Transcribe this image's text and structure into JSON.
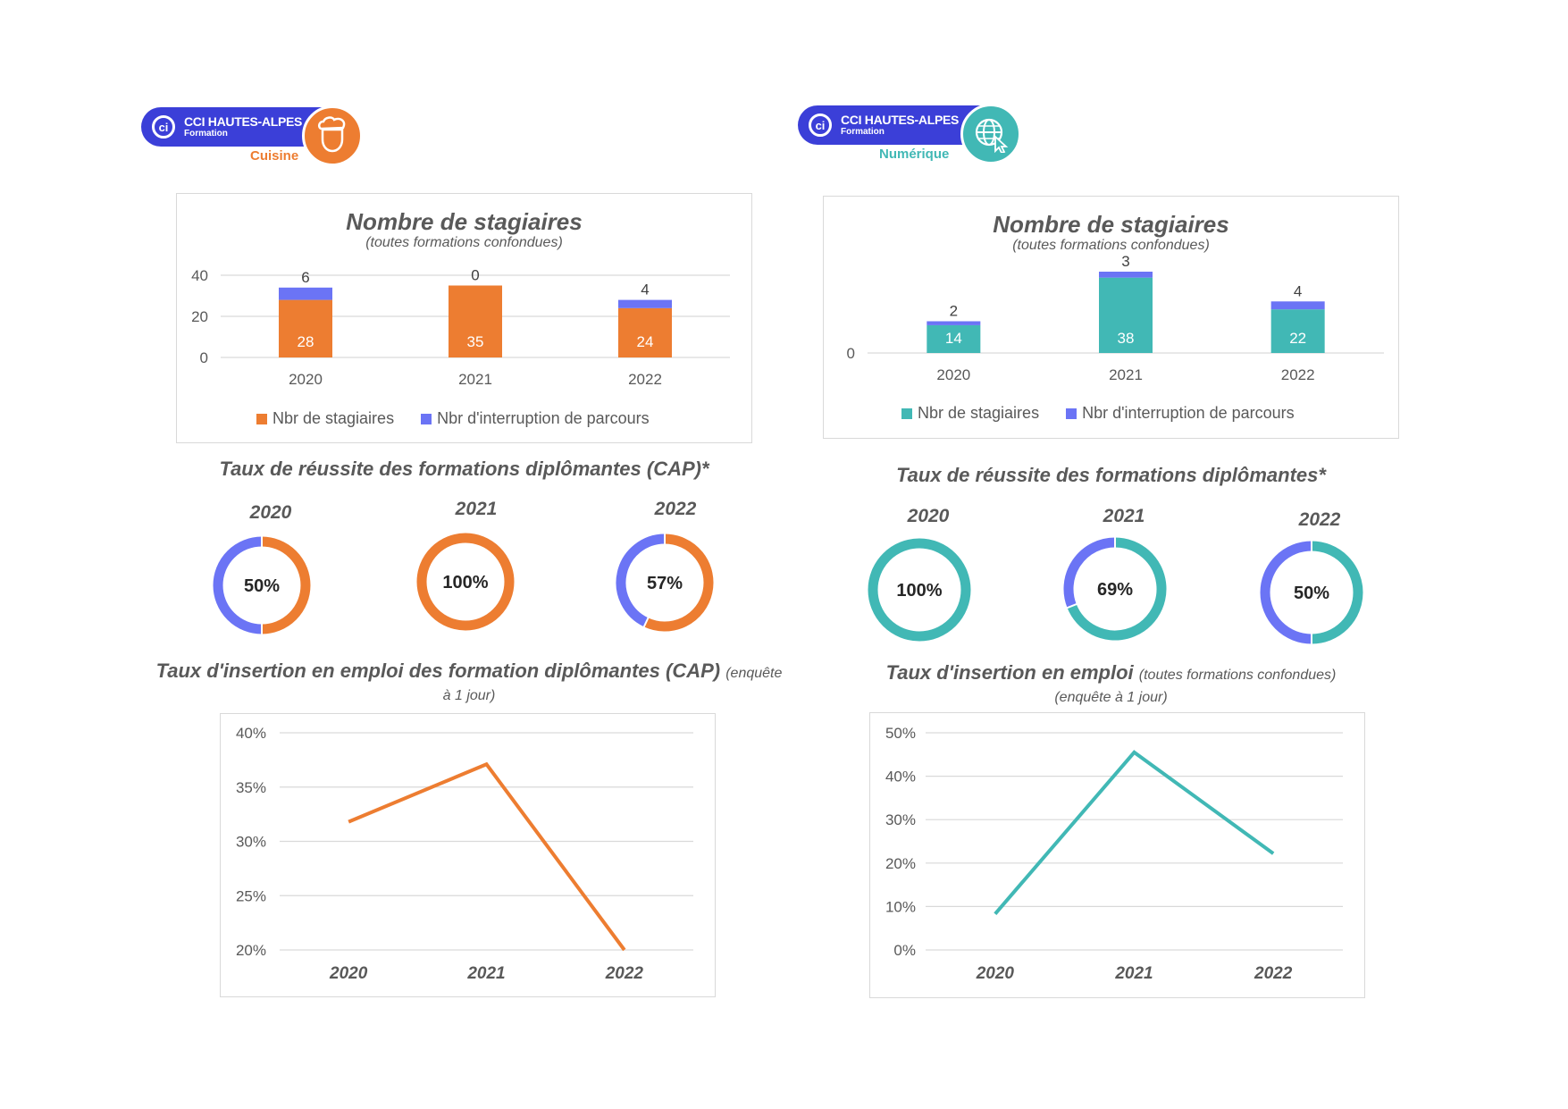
{
  "colors": {
    "orange": "#ed7d31",
    "blue": "#6b74f5",
    "teal": "#41b8b5",
    "text": "#595959",
    "grid": "#d9d9d9",
    "logo_blue": "#3b3fd8"
  },
  "panels": [
    {
      "logo": {
        "name": "CCI HAUTES-ALPES",
        "sub": "Formation",
        "category": "Cuisine",
        "icon": "chef-icon",
        "color": "#ed7d31"
      },
      "bar_title": "Nombre de stagiaires",
      "bar_subtitle": "(toutes formations confondues)",
      "legend": [
        "Nbr de stagiaires",
        "Nbr d'interruption de parcours"
      ],
      "success_title": "Taux de réussite des formations diplômantes (CAP)*",
      "insertion_title": "Taux d'insertion en emploi des formation diplômantes (CAP)",
      "insertion_note": "(enquête à 1 jour)"
    },
    {
      "logo": {
        "name": "CCI HAUTES-ALPES",
        "sub": "Formation",
        "category": "Numérique",
        "icon": "globe-cursor-icon",
        "color": "#41b8b5"
      },
      "bar_title": "Nombre de stagiaires",
      "bar_subtitle": "(toutes formations confondues)",
      "legend": [
        "Nbr de stagiaires",
        "Nbr d'interruption de parcours"
      ],
      "success_title": "Taux de réussite des formations diplômantes*",
      "insertion_title": "Taux d'insertion en emploi",
      "insertion_note": "(toutes formations confondues)",
      "insertion_note2": "(enquête à 1 jour)"
    }
  ],
  "chart_data": [
    {
      "id": "cuisine-stagiaires",
      "type": "bar",
      "stacked": true,
      "title": "Nombre de stagiaires",
      "subtitle": "(toutes formations confondues)",
      "categories": [
        "2020",
        "2021",
        "2022"
      ],
      "series": [
        {
          "name": "Nbr de stagiaires",
          "values": [
            28,
            35,
            24
          ],
          "color": "#ed7d31"
        },
        {
          "name": "Nbr d'interruption de parcours",
          "values": [
            6,
            0,
            4
          ],
          "color": "#6b74f5"
        }
      ],
      "yticks": [
        0,
        20,
        40
      ],
      "ylim": [
        0,
        40
      ],
      "legend": "bottom",
      "grid": true
    },
    {
      "id": "numerique-stagiaires",
      "type": "bar",
      "stacked": true,
      "title": "Nombre de stagiaires",
      "subtitle": "(toutes formations confondues)",
      "categories": [
        "2020",
        "2021",
        "2022"
      ],
      "series": [
        {
          "name": "Nbr de stagiaires",
          "values": [
            14,
            38,
            22
          ],
          "color": "#41b8b5"
        },
        {
          "name": "Nbr d'interruption de parcours",
          "values": [
            2,
            3,
            4
          ],
          "color": "#6b74f5"
        }
      ],
      "yticks": [
        0
      ],
      "ylim": [
        0,
        41
      ],
      "legend": "bottom",
      "grid": true
    },
    {
      "id": "cuisine-reussite",
      "type": "pie",
      "donut": true,
      "title": "Taux de réussite des formations diplômantes (CAP)*",
      "items": [
        {
          "year": "2020",
          "value": 50,
          "label": "50%"
        },
        {
          "year": "2021",
          "value": 100,
          "label": "100%"
        },
        {
          "year": "2022",
          "value": 57,
          "label": "57%"
        }
      ],
      "color_main": "#ed7d31",
      "color_rest": "#6b74f5"
    },
    {
      "id": "numerique-reussite",
      "type": "pie",
      "donut": true,
      "title": "Taux de réussite des formations diplômantes*",
      "items": [
        {
          "year": "2020",
          "value": 100,
          "label": "100%"
        },
        {
          "year": "2021",
          "value": 69,
          "label": "69%"
        },
        {
          "year": "2022",
          "value": 50,
          "label": "50%"
        }
      ],
      "color_main": "#41b8b5",
      "color_rest": "#6b74f5"
    },
    {
      "id": "cuisine-insertion",
      "type": "line",
      "title": "Taux d'insertion en emploi des formation diplômantes (CAP)",
      "x": [
        "2020",
        "2021",
        "2022"
      ],
      "values": [
        31.8,
        37.1,
        20
      ],
      "yticks": [
        20,
        25,
        30,
        35,
        40
      ],
      "ytick_labels": [
        "20%",
        "25%",
        "30%",
        "35%",
        "40%"
      ],
      "ylim": [
        20,
        40
      ],
      "color": "#ed7d31",
      "grid": true
    },
    {
      "id": "numerique-insertion",
      "type": "line",
      "title": "Taux d'insertion en emploi",
      "x": [
        "2020",
        "2021",
        "2022"
      ],
      "values": [
        8.3,
        45.5,
        22.2
      ],
      "yticks": [
        0,
        10,
        20,
        30,
        40,
        50
      ],
      "ytick_labels": [
        "0%",
        "10%",
        "20%",
        "30%",
        "40%",
        "50%"
      ],
      "ylim": [
        0,
        50
      ],
      "color": "#41b8b5",
      "grid": true
    }
  ]
}
